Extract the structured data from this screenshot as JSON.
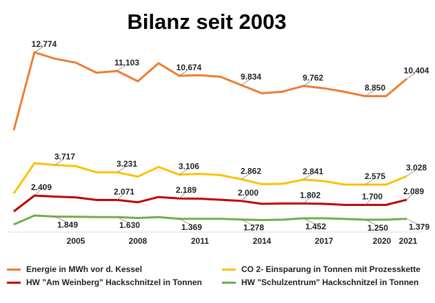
{
  "chart_data": {
    "type": "line",
    "title": "Bilanz seit 2003",
    "x": [
      2002,
      2003,
      2004,
      2005,
      2006,
      2007,
      2008,
      2009,
      2010,
      2011,
      2012,
      2013,
      2014,
      2015,
      2016,
      2017,
      2018,
      2019,
      2020,
      2021
    ],
    "x_ticks": [
      "2005",
      "2008",
      "2011",
      "2014",
      "2017",
      "2020",
      "2021"
    ],
    "x_tick_values": [
      2005,
      2008,
      2011,
      2014,
      2017,
      2020,
      2021
    ],
    "legend_position": "bottom",
    "grid": false,
    "series": [
      {
        "name": "Energie in MWh vor d. Kessel",
        "color": "#ED7D31",
        "values": [
          5800,
          12774,
          12200,
          11850,
          10950,
          11103,
          10180,
          11800,
          10674,
          10720,
          10580,
          9834,
          9100,
          9250,
          9762,
          9550,
          9230,
          8850,
          8850,
          10404
        ],
        "labels": [
          {
            "x": 2003,
            "text": "12.774"
          },
          {
            "x": 2007,
            "text": "11.103"
          },
          {
            "x": 2010,
            "text": "10.674"
          },
          {
            "x": 2013,
            "text": "9.834"
          },
          {
            "x": 2016,
            "text": "9.762"
          },
          {
            "x": 2019,
            "text": "8.850"
          },
          {
            "x": 2021,
            "text": "10.404"
          }
        ]
      },
      {
        "name": "CO 2- Einsparung in Tonnen mit Prozesskette",
        "color": "#FFC000",
        "values": [
          2100,
          3717,
          3620,
          3560,
          3231,
          3231,
          3000,
          3520,
          3106,
          3150,
          3080,
          2862,
          2600,
          2620,
          2841,
          2760,
          2575,
          2575,
          2575,
          3028
        ],
        "labels": [
          {
            "x": 2004,
            "text": "3.717"
          },
          {
            "x": 2007,
            "text": "3.231"
          },
          {
            "x": 2010,
            "text": "3.106"
          },
          {
            "x": 2013,
            "text": "2.862"
          },
          {
            "x": 2016,
            "text": "2.841"
          },
          {
            "x": 2019,
            "text": "2.575"
          },
          {
            "x": 2021,
            "text": "3.028"
          }
        ]
      },
      {
        "name": "HW \"Am Weinberg\" Hackschnitzel in Tonnen",
        "color": "#C00000",
        "values": [
          1200,
          2409,
          2330,
          2270,
          2071,
          2071,
          1900,
          2300,
          2189,
          2170,
          2090,
          2000,
          1780,
          1802,
          1802,
          1780,
          1700,
          1700,
          1700,
          2089
        ],
        "labels": [
          {
            "x": 2003,
            "text": "2.409"
          },
          {
            "x": 2007,
            "text": "2.071"
          },
          {
            "x": 2010,
            "text": "2.189"
          },
          {
            "x": 2013,
            "text": "2.000"
          },
          {
            "x": 2016,
            "text": "1.802"
          },
          {
            "x": 2019,
            "text": "1.700"
          },
          {
            "x": 2021,
            "text": "2.089"
          }
        ]
      },
      {
        "name": "HW \"Schulzentrum\" Hackschnitzel in Tonnen",
        "color": "#70AD47",
        "values": [
          550,
          1849,
          1700,
          1680,
          1630,
          1630,
          1500,
          1620,
          1369,
          1369,
          1380,
          1278,
          1200,
          1250,
          1452,
          1452,
          1360,
          1250,
          1250,
          1379
        ],
        "labels": [
          {
            "x": 2004,
            "text": "1.849"
          },
          {
            "x": 2007,
            "text": "1.630"
          },
          {
            "x": 2010,
            "text": "1.369"
          },
          {
            "x": 2013,
            "text": "1.278"
          },
          {
            "x": 2016,
            "text": "1.452"
          },
          {
            "x": 2019,
            "text": "1.250"
          },
          {
            "x": 2021,
            "text": "1.379"
          }
        ]
      }
    ]
  }
}
